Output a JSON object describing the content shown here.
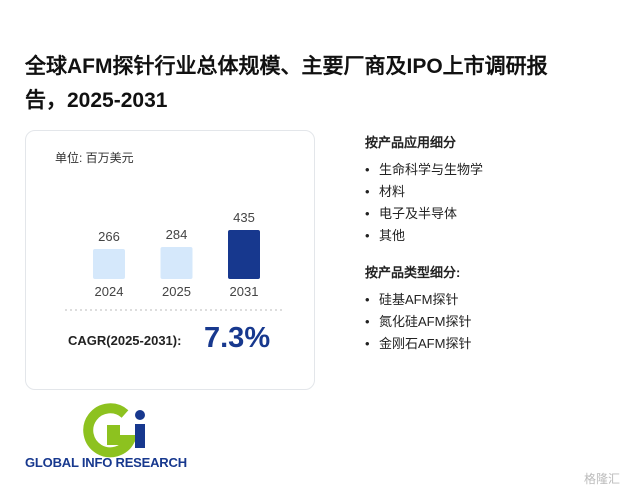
{
  "title": "全球AFM探针行业总体规模、主要厂商及IPO上市调研报告，2025-2031",
  "chart_data": {
    "type": "bar",
    "unit": "单位: 百万美元",
    "categories": [
      "2024",
      "2025",
      "2031"
    ],
    "values": [
      266,
      284,
      435
    ],
    "colors": [
      "#d5e8fb",
      "#d5e8fb",
      "#17388e"
    ]
  },
  "cagr": {
    "label": "CAGR(2025-2031):",
    "value": "7.3%"
  },
  "segments": [
    {
      "heading": "按产品应用细分",
      "items": [
        "生命科学与生物学",
        "材料",
        "电子及半导体",
        "其他"
      ]
    },
    {
      "heading": "按产品类型细分:",
      "items": [
        "硅基AFM探针",
        "氮化硅AFM探针",
        "金刚石AFM探针"
      ]
    }
  ],
  "logo": "GLOBAL INFO RESEARCH",
  "watermark": "格隆汇"
}
